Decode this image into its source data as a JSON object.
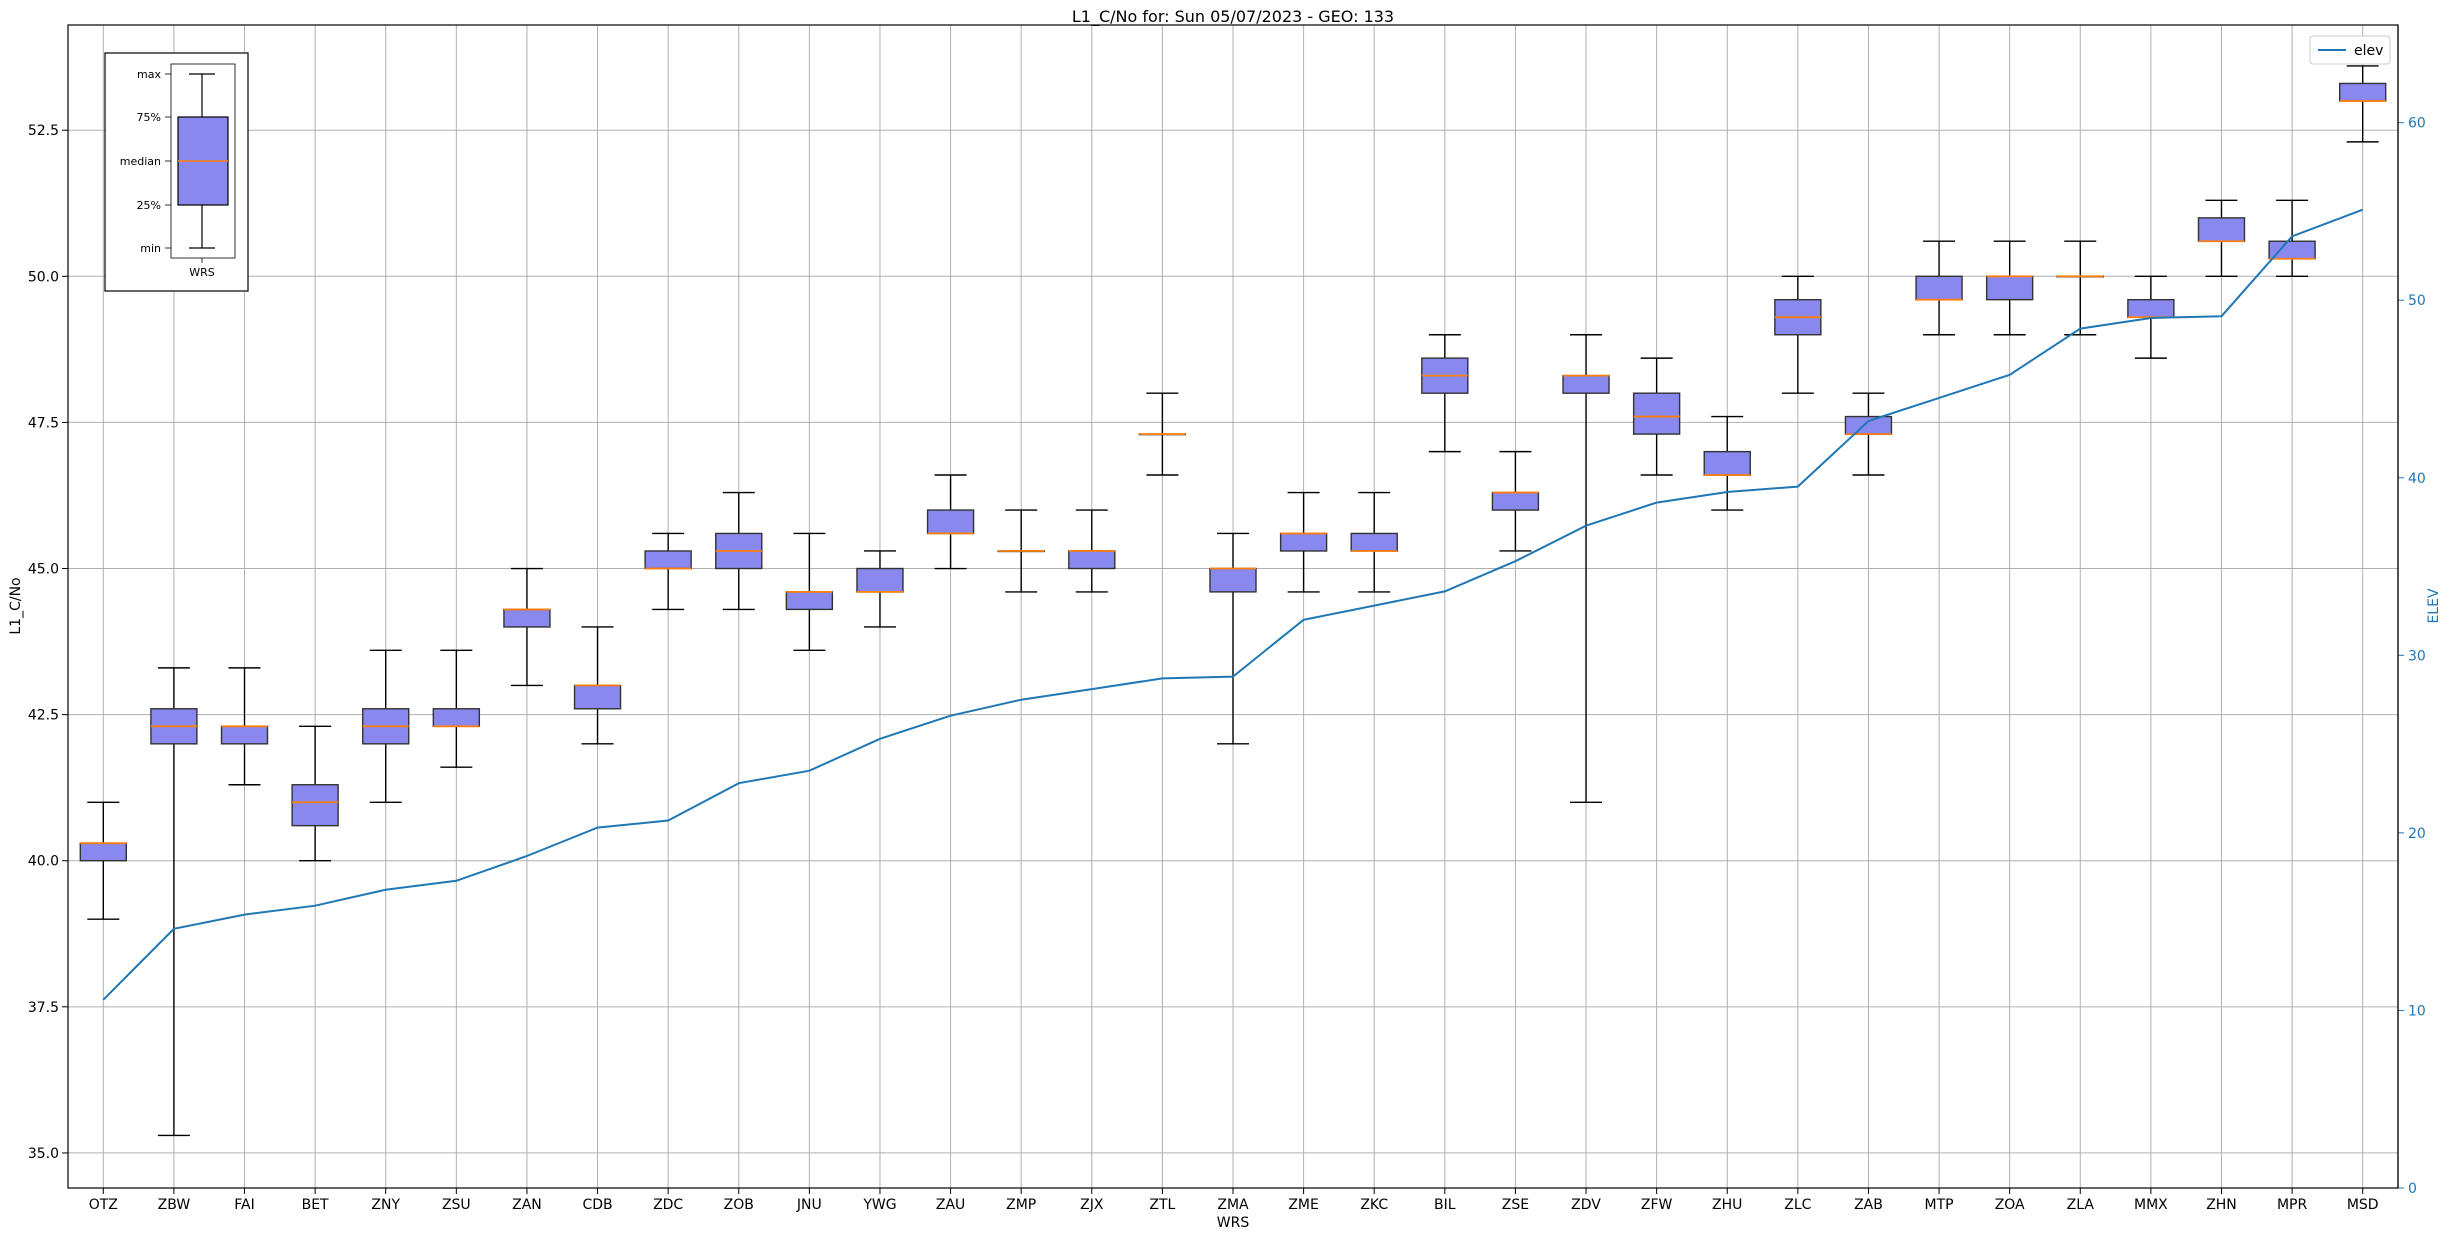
{
  "chart_data": {
    "type": "box",
    "title": "L1_C/No for: Sun 05/07/2023 - GEO: 133",
    "xlabel": "WRS",
    "ylabel": "L1_C/No",
    "y2label": "ELEV",
    "ylim": [
      34.4,
      54.3
    ],
    "y2lim": [
      0,
      65.5
    ],
    "yticks": [
      "35.0",
      "37.5",
      "40.0",
      "42.5",
      "45.0",
      "47.5",
      "50.0",
      "52.5"
    ],
    "y2ticks": [
      "0",
      "10",
      "20",
      "30",
      "40",
      "50",
      "60"
    ],
    "grid": true,
    "legend": {
      "position": "top-right",
      "entries": [
        "elev"
      ]
    },
    "colors": {
      "box_fill": "#8888ee",
      "median": "#ff7f0e",
      "elev_line": "#1f77b4",
      "whisker": "#000000",
      "grid": "#b0b0b0"
    },
    "categories": [
      "OTZ",
      "ZBW",
      "FAI",
      "BET",
      "ZNY",
      "ZSU",
      "ZAN",
      "CDB",
      "ZDC",
      "ZOB",
      "JNU",
      "YWG",
      "ZAU",
      "ZMP",
      "ZJX",
      "ZTL",
      "ZMA",
      "ZME",
      "ZKC",
      "BIL",
      "ZSE",
      "ZDV",
      "ZFW",
      "ZHU",
      "ZLC",
      "ZAB",
      "MTP",
      "ZOA",
      "ZLA",
      "MMX",
      "ZHN",
      "MPR",
      "MSD"
    ],
    "boxes": [
      {
        "min": 39.0,
        "q1": 40.0,
        "median": 40.3,
        "q3": 40.3,
        "max": 41.0
      },
      {
        "min": 35.3,
        "q1": 42.0,
        "median": 42.3,
        "q3": 42.6,
        "max": 43.3
      },
      {
        "min": 41.3,
        "q1": 42.0,
        "median": 42.3,
        "q3": 42.3,
        "max": 43.3
      },
      {
        "min": 40.0,
        "q1": 40.6,
        "median": 41.0,
        "q3": 41.3,
        "max": 42.3
      },
      {
        "min": 41.0,
        "q1": 42.0,
        "median": 42.3,
        "q3": 42.6,
        "max": 43.6
      },
      {
        "min": 41.6,
        "q1": 42.3,
        "median": 42.3,
        "q3": 42.6,
        "max": 43.6
      },
      {
        "min": 43.0,
        "q1": 44.0,
        "median": 44.3,
        "q3": 44.3,
        "max": 45.0
      },
      {
        "min": 42.0,
        "q1": 42.6,
        "median": 43.0,
        "q3": 43.0,
        "max": 44.0
      },
      {
        "min": 44.3,
        "q1": 45.0,
        "median": 45.0,
        "q3": 45.3,
        "max": 45.6
      },
      {
        "min": 44.3,
        "q1": 45.0,
        "median": 45.3,
        "q3": 45.6,
        "max": 46.3
      },
      {
        "min": 43.6,
        "q1": 44.3,
        "median": 44.6,
        "q3": 44.6,
        "max": 45.6
      },
      {
        "min": 44.0,
        "q1": 44.6,
        "median": 44.6,
        "q3": 45.0,
        "max": 45.3
      },
      {
        "min": 45.0,
        "q1": 45.6,
        "median": 45.6,
        "q3": 46.0,
        "max": 46.6
      },
      {
        "min": 44.6,
        "q1": 45.3,
        "median": 45.3,
        "q3": 45.3,
        "max": 46.0
      },
      {
        "min": 44.6,
        "q1": 45.0,
        "median": 45.3,
        "q3": 45.3,
        "max": 46.0
      },
      {
        "min": 46.6,
        "q1": 47.3,
        "median": 47.3,
        "q3": 47.3,
        "max": 48.0
      },
      {
        "min": 42.0,
        "q1": 44.6,
        "median": 45.0,
        "q3": 45.0,
        "max": 45.6
      },
      {
        "min": 44.6,
        "q1": 45.3,
        "median": 45.6,
        "q3": 45.6,
        "max": 46.3
      },
      {
        "min": 44.6,
        "q1": 45.3,
        "median": 45.3,
        "q3": 45.6,
        "max": 46.3
      },
      {
        "min": 47.0,
        "q1": 48.0,
        "median": 48.3,
        "q3": 48.6,
        "max": 49.0
      },
      {
        "min": 45.3,
        "q1": 46.0,
        "median": 46.3,
        "q3": 46.3,
        "max": 47.0
      },
      {
        "min": 41.0,
        "q1": 48.0,
        "median": 48.3,
        "q3": 48.3,
        "max": 49.0
      },
      {
        "min": 46.6,
        "q1": 47.3,
        "median": 47.6,
        "q3": 48.0,
        "max": 48.6
      },
      {
        "min": 46.0,
        "q1": 46.6,
        "median": 46.6,
        "q3": 47.0,
        "max": 47.6
      },
      {
        "min": 48.0,
        "q1": 49.0,
        "median": 49.3,
        "q3": 49.6,
        "max": 50.0
      },
      {
        "min": 46.6,
        "q1": 47.3,
        "median": 47.3,
        "q3": 47.6,
        "max": 48.0
      },
      {
        "min": 49.0,
        "q1": 49.6,
        "median": 49.6,
        "q3": 50.0,
        "max": 50.6
      },
      {
        "min": 49.0,
        "q1": 49.6,
        "median": 50.0,
        "q3": 50.0,
        "max": 50.6
      },
      {
        "min": 49.0,
        "q1": 50.0,
        "median": 50.0,
        "q3": 50.0,
        "max": 50.6
      },
      {
        "min": 48.6,
        "q1": 49.3,
        "median": 49.3,
        "q3": 49.6,
        "max": 50.0
      },
      {
        "min": 50.0,
        "q1": 50.6,
        "median": 50.6,
        "q3": 51.0,
        "max": 51.3
      },
      {
        "min": 50.0,
        "q1": 50.3,
        "median": 50.3,
        "q3": 50.6,
        "max": 51.3
      },
      {
        "min": 52.3,
        "q1": 53.0,
        "median": 53.0,
        "q3": 53.3,
        "max": 53.6
      }
    ],
    "series": [
      {
        "name": "elev",
        "axis": "right",
        "values": [
          10.6,
          14.6,
          15.4,
          15.9,
          16.8,
          17.3,
          18.7,
          20.3,
          20.7,
          22.8,
          23.5,
          25.3,
          26.6,
          27.5,
          28.1,
          28.7,
          28.8,
          32.0,
          32.8,
          33.6,
          35.3,
          37.3,
          38.6,
          39.2,
          39.5,
          43.2,
          44.5,
          45.8,
          48.4,
          49.0,
          49.1,
          53.6,
          55.1
        ]
      }
    ],
    "legend_box": {
      "labels": [
        "max",
        "75%",
        "median",
        "25%",
        "min"
      ],
      "xlabel": "WRS"
    }
  }
}
